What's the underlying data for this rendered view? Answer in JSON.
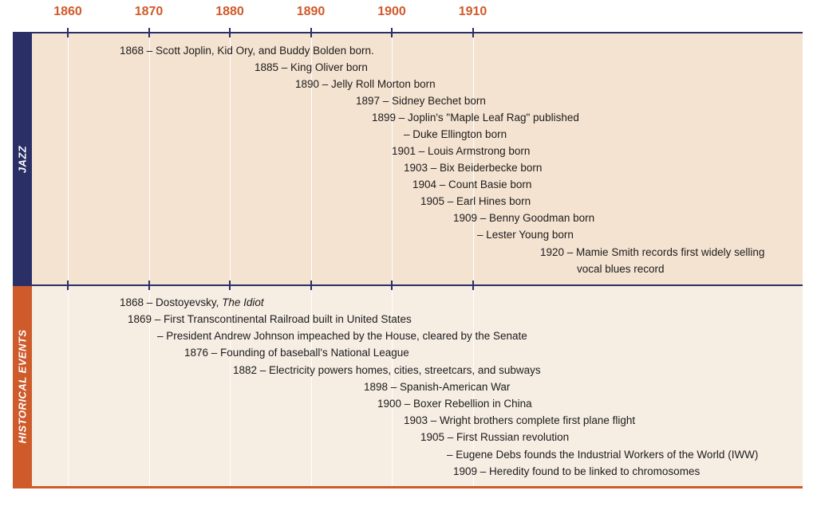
{
  "timeline": {
    "axis_years": [
      1860,
      1870,
      1880,
      1890,
      1900,
      1910
    ],
    "jazz": {
      "label": "JAZZ",
      "events": [
        {
          "year_text": "1868",
          "text": "– Scott Joplin, Kid Ory, and Buddy Bolden born."
        },
        {
          "year_text": "1885",
          "text": "– King Oliver born"
        },
        {
          "year_text": "1890",
          "text": "– Jelly Roll Morton born"
        },
        {
          "year_text": "1897",
          "text": "– Sidney Bechet born"
        },
        {
          "year_text": "1899",
          "text": "– Joplin's \"Maple Leaf Rag\" published"
        },
        {
          "year_text": "",
          "text": "– Duke Ellington born"
        },
        {
          "year_text": "1901",
          "text": "– Louis Armstrong born"
        },
        {
          "year_text": "1903",
          "text": "– Bix Beiderbecke born"
        },
        {
          "year_text": "1904",
          "text": "– Count Basie born"
        },
        {
          "year_text": "1905",
          "text": "– Earl Hines born"
        },
        {
          "year_text": "1909",
          "text": "– Benny Goodman born"
        },
        {
          "year_text": "",
          "text": "– Lester Young born"
        },
        {
          "year_text": "1920",
          "text": "– Mamie Smith records first widely selling",
          "text2": "vocal blues record"
        }
      ]
    },
    "historical": {
      "label": "HISTORICAL EVENTS",
      "events": [
        {
          "year_text": "1868",
          "text": "– Dostoyevsky, ",
          "title": "The Idiot"
        },
        {
          "year_text": "1869",
          "text": "– First Transcontinental Railroad built in United States"
        },
        {
          "year_text": "",
          "text": "– President Andrew Johnson impeached by the House, cleared by the Senate"
        },
        {
          "year_text": "1876",
          "text": "– Founding of baseball's National League"
        },
        {
          "year_text": "1882",
          "text": "– Electricity powers homes, cities, streetcars, and subways"
        },
        {
          "year_text": "1898",
          "text": "– Spanish-American War"
        },
        {
          "year_text": "1900",
          "text": "– Boxer Rebellion in China"
        },
        {
          "year_text": "1903",
          "text": "– Wright brothers complete first plane flight"
        },
        {
          "year_text": "1905",
          "text": "– First Russian revolution"
        },
        {
          "year_text": "",
          "text": "– Eugene Debs founds the Industrial Workers of the World (IWW)"
        },
        {
          "year_text": "1909",
          "text": "– Heredity found to be linked to chromosomes"
        }
      ]
    },
    "colors": {
      "navy": "#2a2f66",
      "orange": "#cf5a2a",
      "jazz_band": "#f5e3d1",
      "history_band": "#f6ede3"
    }
  }
}
